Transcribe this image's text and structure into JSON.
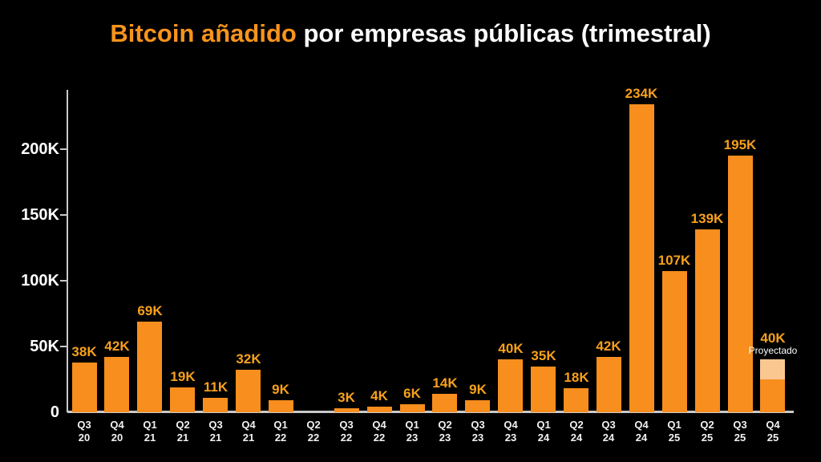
{
  "title": {
    "highlight": "Bitcoin añadido",
    "rest": " por empresas públicas (trimestral)"
  },
  "colors": {
    "background": "#000000",
    "bar": "#F78E1E",
    "projected_fill": "#FBC791",
    "value_label": "#F7A11B",
    "title_highlight": "#F7941C",
    "axis": "#C9C9C9",
    "text": "#FFFFFF"
  },
  "chart_data": {
    "type": "bar",
    "title": "Bitcoin añadido por empresas públicas (trimestral)",
    "xlabel": "",
    "ylabel": "",
    "unit": "K BTC",
    "grid": false,
    "legend": false,
    "ylim": [
      0,
      240
    ],
    "y_ticks": [
      {
        "value": 0,
        "label": "0"
      },
      {
        "value": 50,
        "label": "50K"
      },
      {
        "value": 100,
        "label": "100K"
      },
      {
        "value": 150,
        "label": "150K"
      },
      {
        "value": 200,
        "label": "200K"
      }
    ],
    "categories": [
      "Q3 20",
      "Q4 20",
      "Q1 21",
      "Q2 21",
      "Q3 21",
      "Q4 21",
      "Q1 22",
      "Q2 22",
      "Q3 22",
      "Q4 22",
      "Q1 23",
      "Q2 23",
      "Q3 23",
      "Q4 23",
      "Q1 24",
      "Q2 24",
      "Q3 24",
      "Q4 24",
      "Q1 25",
      "Q2 25",
      "Q3 25",
      "Q4 25"
    ],
    "values": [
      38,
      42,
      69,
      19,
      11,
      32,
      9,
      0,
      3,
      4,
      6,
      14,
      9,
      40,
      35,
      18,
      42,
      234,
      107,
      139,
      195,
      40
    ],
    "value_labels": [
      "38K",
      "42K",
      "69K",
      "19K",
      "11K",
      "32K",
      "9K",
      "",
      "3K",
      "4K",
      "6K",
      "14K",
      "9K",
      "40K",
      "35K",
      "18K",
      "42K",
      "234K",
      "107K",
      "139K",
      "195K",
      "40K"
    ],
    "projected_index": 21,
    "projected_note": "Proyectado",
    "projected_light_fraction": 0.38
  }
}
